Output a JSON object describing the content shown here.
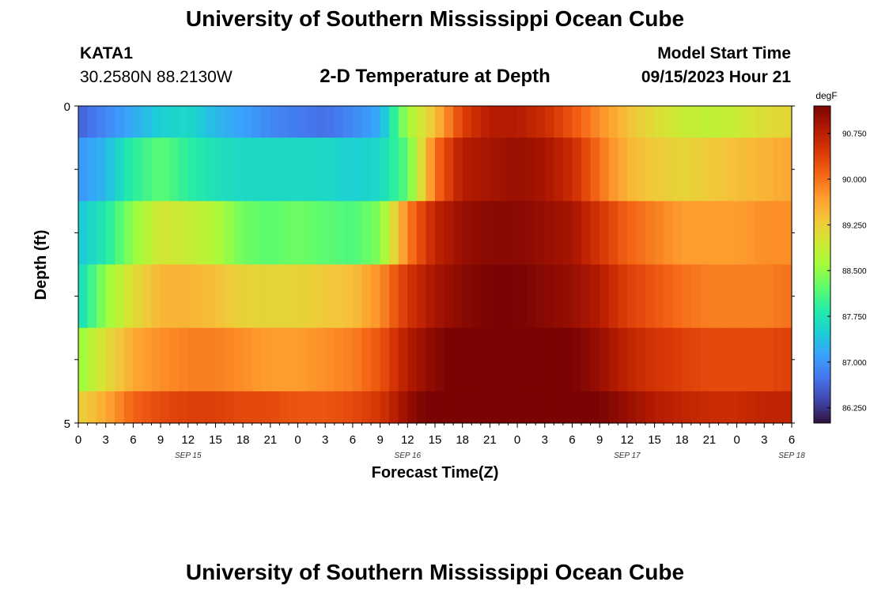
{
  "header": {
    "title": "University of Southern Mississippi Ocean Cube",
    "station": "KATA1",
    "coords": "30.2580N  88.2130W",
    "subtitle": "2-D Temperature at Depth",
    "model_start_label": "Model Start Time",
    "model_start_value": "09/15/2023 Hour 21"
  },
  "footer": {
    "title": "University of Southern Mississippi Ocean Cube"
  },
  "colors": {
    "colormap": [
      "#30123b",
      "#4145ab",
      "#4675ed",
      "#39a2fc",
      "#1bcfd4",
      "#24eca6",
      "#61fc6c",
      "#a4fc3b",
      "#d1e834",
      "#f3c63a",
      "#fe9b2d",
      "#f36315",
      "#d93806",
      "#b11901",
      "#7a0403"
    ]
  },
  "chart_data": {
    "type": "heatmap",
    "title": "2-D Temperature at Depth",
    "xlabel": "Forecast Time(Z)",
    "ylabel": "Depth (ft)",
    "y_range": [
      0,
      5
    ],
    "y_tick_labels": [
      "0",
      "5"
    ],
    "x_tick_labels": [
      "0",
      "3",
      "6",
      "9",
      "12",
      "15",
      "18",
      "21",
      "0",
      "3",
      "6",
      "9",
      "12",
      "15",
      "18",
      "21",
      "0",
      "3",
      "6",
      "9",
      "12",
      "15",
      "18",
      "21",
      "0",
      "3",
      "6"
    ],
    "date_labels": [
      {
        "label": "SEP 15",
        "hour": 12
      },
      {
        "label": "SEP 16",
        "hour": 36
      },
      {
        "label": "SEP 17",
        "hour": 60
      },
      {
        "label": "SEP 18",
        "hour": 78
      }
    ],
    "x_start_hour": 0,
    "x_end_hour": 78,
    "colorbar": {
      "unit": "degF",
      "min": 86.0,
      "max": 91.2,
      "ticks": [
        "86.250",
        "87.000",
        "87.750",
        "88.500",
        "89.250",
        "90.000",
        "90.750"
      ]
    },
    "depth_layers": [
      "0-0.5 ft",
      "0.5-1.5 ft",
      "1.5-2.5 ft",
      "2.5-3.5 ft",
      "3.5-4.5 ft",
      "4.5-5 ft"
    ],
    "anchor_hours": [
      0,
      3,
      6,
      9,
      12,
      15,
      18,
      21,
      24,
      27,
      30,
      33,
      36,
      39,
      42,
      45,
      48,
      51,
      54,
      57,
      60,
      63,
      66,
      69,
      72,
      75,
      78
    ],
    "values_degF": [
      [
        86.6,
        86.9,
        87.2,
        87.5,
        87.6,
        87.3,
        87.1,
        86.9,
        86.8,
        86.7,
        86.9,
        87.2,
        88.6,
        89.4,
        90.4,
        90.8,
        90.8,
        90.6,
        90.2,
        89.8,
        89.4,
        89.1,
        88.9,
        88.8,
        88.9,
        89.1,
        89.2
      ],
      [
        87.0,
        87.3,
        87.9,
        88.2,
        87.9,
        87.7,
        87.6,
        87.6,
        87.6,
        87.6,
        87.5,
        87.6,
        88.2,
        90.0,
        90.8,
        90.9,
        91.0,
        90.9,
        90.6,
        90.0,
        89.5,
        89.3,
        89.2,
        89.3,
        89.4,
        89.5,
        89.6
      ],
      [
        87.4,
        87.8,
        88.5,
        89.0,
        88.9,
        88.7,
        88.3,
        88.2,
        88.3,
        88.2,
        88.1,
        88.4,
        89.9,
        90.7,
        91.0,
        91.1,
        91.1,
        91.0,
        90.9,
        90.5,
        90.1,
        89.9,
        89.7,
        89.7,
        89.7,
        89.8,
        89.8
      ],
      [
        87.6,
        88.5,
        89.1,
        89.5,
        89.5,
        89.4,
        89.2,
        89.2,
        89.2,
        89.3,
        89.4,
        89.8,
        90.5,
        90.9,
        91.1,
        91.2,
        91.2,
        91.1,
        91.0,
        90.8,
        90.4,
        90.2,
        90.0,
        89.9,
        89.9,
        89.9,
        90.0
      ],
      [
        88.5,
        89.1,
        89.6,
        89.8,
        89.9,
        89.9,
        89.8,
        89.7,
        89.7,
        89.8,
        89.9,
        90.2,
        90.8,
        91.1,
        91.3,
        91.4,
        91.4,
        91.3,
        91.2,
        91.0,
        90.7,
        90.5,
        90.4,
        90.3,
        90.3,
        90.3,
        90.4
      ],
      [
        89.2,
        89.6,
        90.1,
        90.3,
        90.4,
        90.4,
        90.3,
        90.3,
        90.2,
        90.2,
        90.3,
        90.5,
        91.0,
        91.3,
        91.5,
        91.6,
        91.6,
        91.5,
        91.4,
        91.2,
        91.0,
        90.8,
        90.7,
        90.6,
        90.6,
        90.7,
        90.7
      ]
    ]
  }
}
